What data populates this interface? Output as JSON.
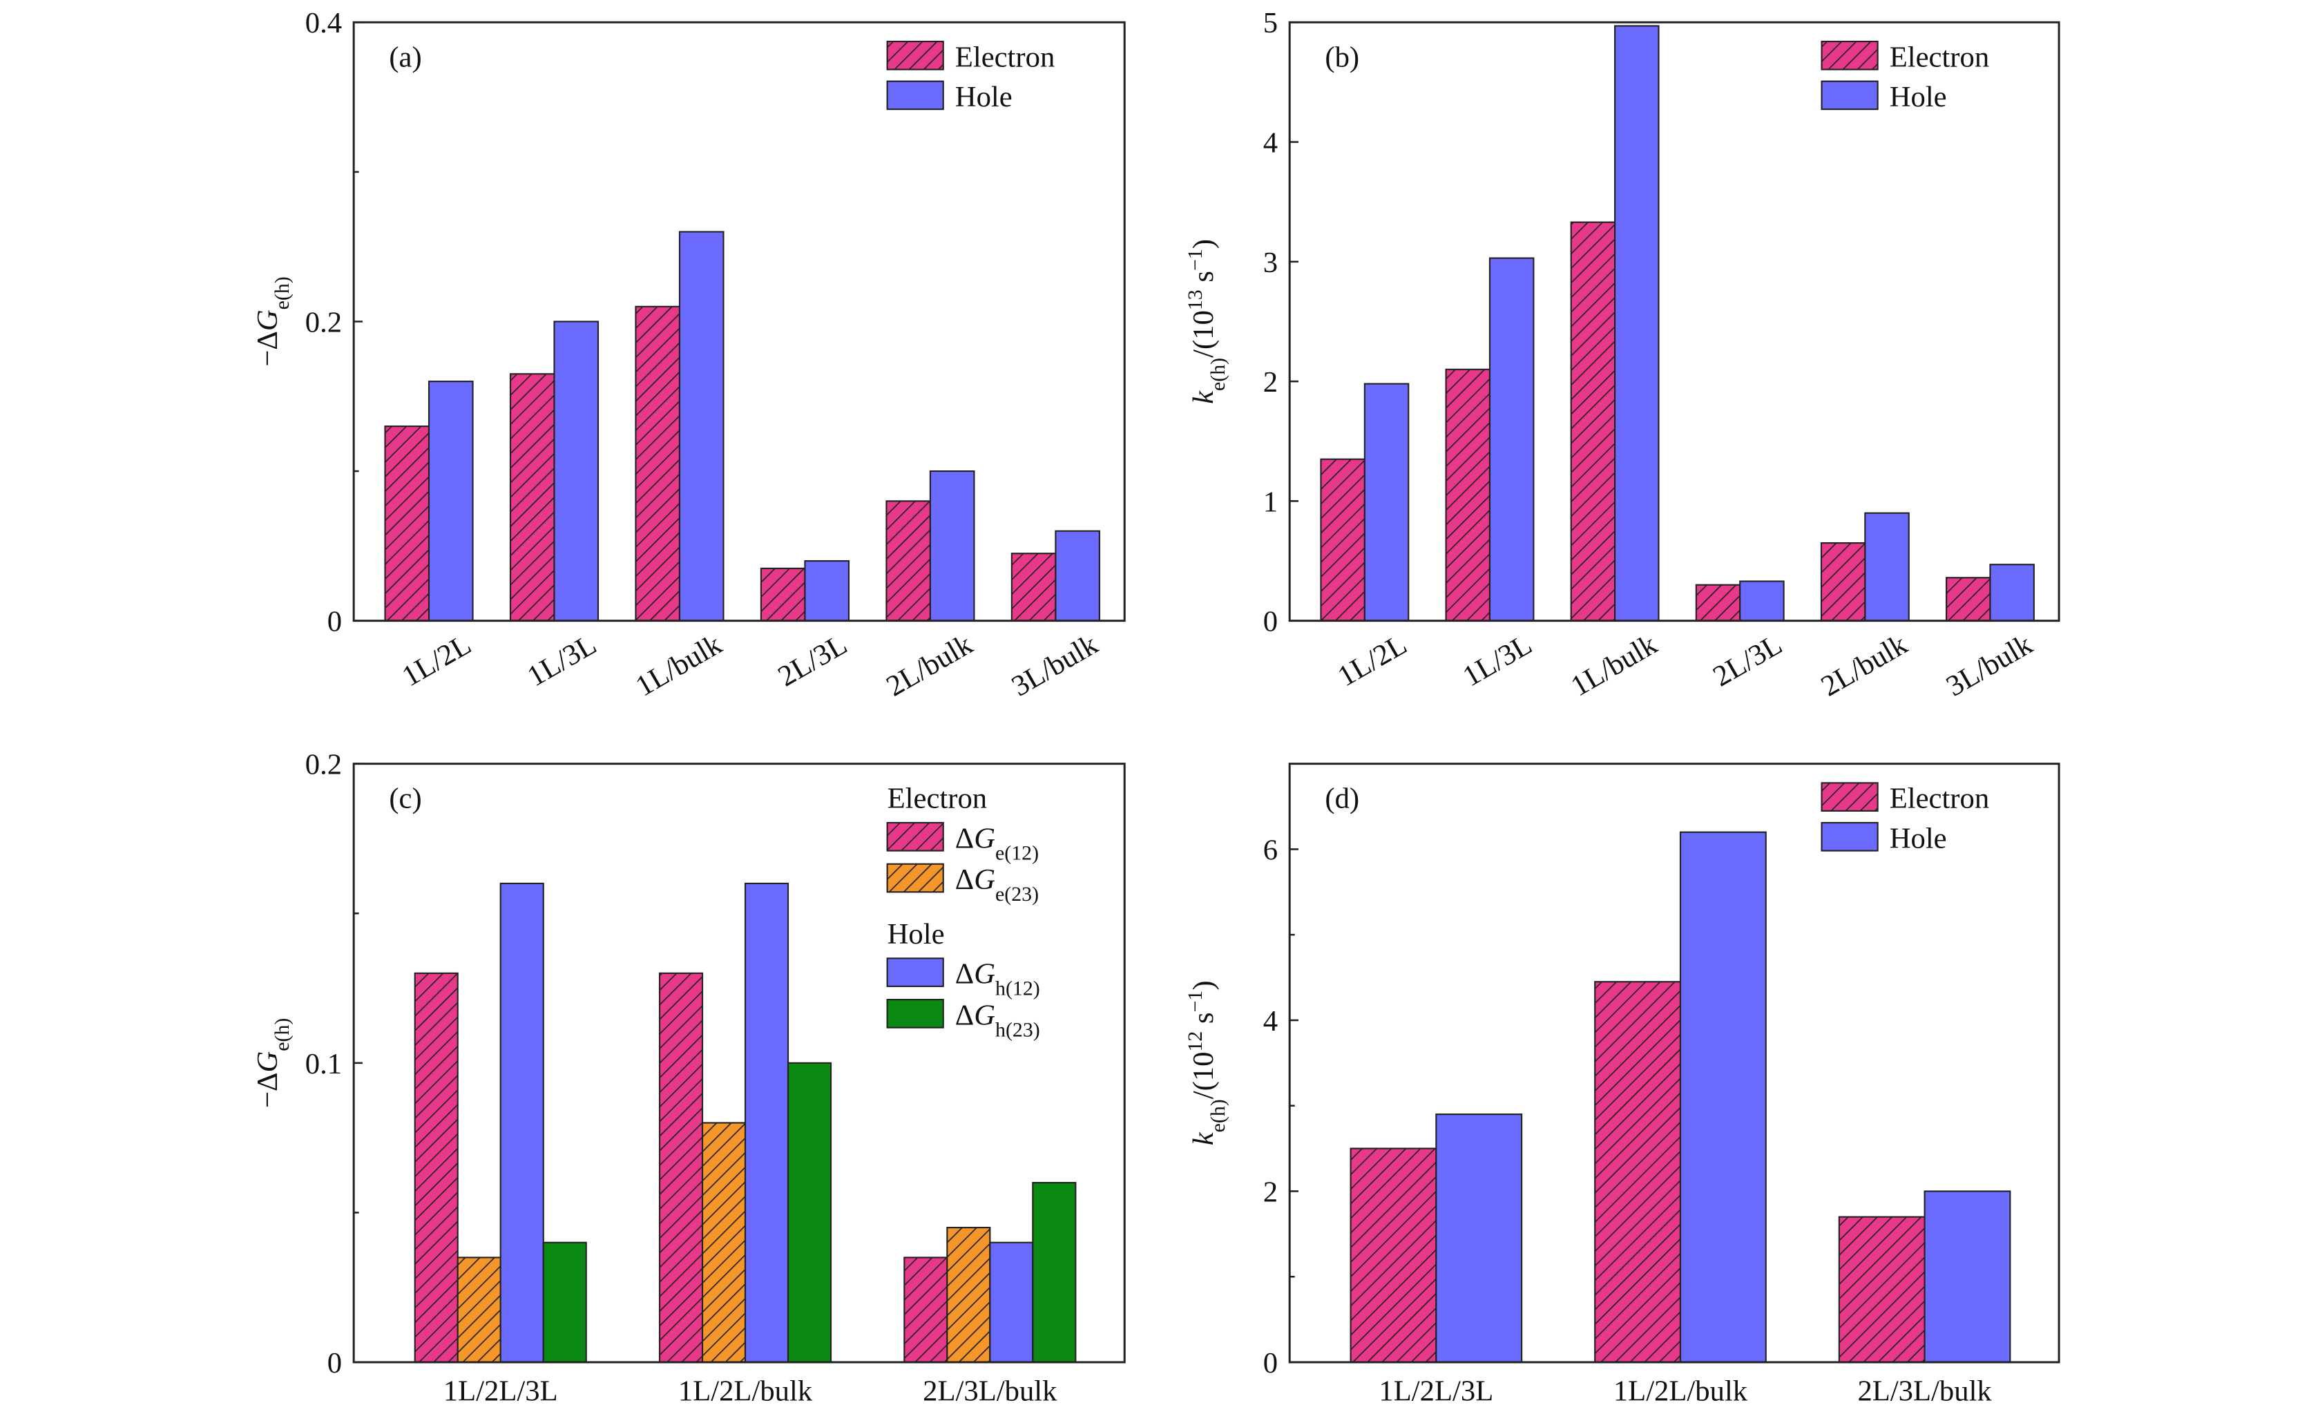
{
  "chart_data": [
    {
      "type": "bar",
      "panel_label": "(a)",
      "ylabel": [
        {
          "text": "−Δ"
        },
        {
          "text": "G",
          "italic": true
        },
        {
          "text": "e(h)",
          "sub": true
        }
      ],
      "categories": [
        "1L/2L",
        "1L/3L",
        "1L/bulk",
        "2L/3L",
        "2L/bulk",
        "3L/bulk"
      ],
      "rotated_xlabels": true,
      "ylim": [
        0,
        0.4
      ],
      "yticks": [
        0,
        0.2,
        0.4
      ],
      "yminor": [
        0.1,
        0.3
      ],
      "legend": "upper right",
      "series": [
        {
          "name": [
            {
              "text": "Electron"
            }
          ],
          "color": "#e8388a",
          "hatch": true,
          "values": [
            0.13,
            0.165,
            0.21,
            0.035,
            0.08,
            0.045
          ]
        },
        {
          "name": [
            {
              "text": "Hole"
            }
          ],
          "color": "#6b6bff",
          "hatch": false,
          "values": [
            0.16,
            0.2,
            0.26,
            0.04,
            0.1,
            0.06
          ]
        }
      ]
    },
    {
      "type": "bar",
      "panel_label": "(b)",
      "ylabel": [
        {
          "text": "k",
          "italic": true
        },
        {
          "text": "e(h)",
          "sub": true
        },
        {
          "text": "/(10"
        },
        {
          "text": "13",
          "sup": true
        },
        {
          "text": " s"
        },
        {
          "text": "−1",
          "sup": true
        },
        {
          "text": ")"
        }
      ],
      "categories": [
        "1L/2L",
        "1L/3L",
        "1L/bulk",
        "2L/3L",
        "2L/bulk",
        "3L/bulk"
      ],
      "rotated_xlabels": true,
      "ylim": [
        0,
        5
      ],
      "yticks": [
        0,
        1,
        2,
        3,
        4,
        5
      ],
      "yminor": [],
      "legend": "upper right",
      "series": [
        {
          "name": [
            {
              "text": "Electron"
            }
          ],
          "color": "#e8388a",
          "hatch": true,
          "values": [
            1.35,
            2.1,
            3.33,
            0.3,
            0.65,
            0.36
          ]
        },
        {
          "name": [
            {
              "text": "Hole"
            }
          ],
          "color": "#6b6bff",
          "hatch": false,
          "values": [
            1.98,
            3.03,
            4.97,
            0.33,
            0.9,
            0.47
          ]
        }
      ]
    },
    {
      "type": "bar",
      "panel_label": "(c)",
      "ylabel": [
        {
          "text": "−Δ"
        },
        {
          "text": "G",
          "italic": true
        },
        {
          "text": "e(h)",
          "sub": true
        }
      ],
      "categories": [
        "1L/2L/3L",
        "1L/2L/bulk",
        "2L/3L/bulk"
      ],
      "rotated_xlabels": false,
      "ylim": [
        0,
        0.2
      ],
      "yticks": [
        0,
        0.1,
        0.2
      ],
      "yminor": [
        0.05,
        0.15
      ],
      "legend": "upper right",
      "legend_groups": [
        {
          "title": "Electron",
          "series": [
            0,
            1
          ]
        },
        {
          "title": "Hole",
          "series": [
            2,
            3
          ]
        }
      ],
      "series": [
        {
          "name": [
            {
              "text": "Δ"
            },
            {
              "text": "G",
              "italic": true
            },
            {
              "text": "e(12)",
              "sub": true
            }
          ],
          "color": "#e8388a",
          "hatch": true,
          "values": [
            0.13,
            0.13,
            0.035
          ]
        },
        {
          "name": [
            {
              "text": "Δ"
            },
            {
              "text": "G",
              "italic": true
            },
            {
              "text": "e(23)",
              "sub": true
            }
          ],
          "color": "#f5962a",
          "hatch": true,
          "values": [
            0.035,
            0.08,
            0.045
          ]
        },
        {
          "name": [
            {
              "text": "Δ"
            },
            {
              "text": "G",
              "italic": true
            },
            {
              "text": "h(12)",
              "sub": true
            }
          ],
          "color": "#6b6bff",
          "hatch": false,
          "values": [
            0.16,
            0.16,
            0.04
          ]
        },
        {
          "name": [
            {
              "text": "Δ"
            },
            {
              "text": "G",
              "italic": true
            },
            {
              "text": "h(23)",
              "sub": true
            }
          ],
          "color": "#0a8a12",
          "hatch": false,
          "values": [
            0.04,
            0.1,
            0.06
          ]
        }
      ]
    },
    {
      "type": "bar",
      "panel_label": "(d)",
      "ylabel": [
        {
          "text": "k",
          "italic": true
        },
        {
          "text": "e(h)",
          "sub": true
        },
        {
          "text": "/(10"
        },
        {
          "text": "12",
          "sup": true
        },
        {
          "text": " s"
        },
        {
          "text": "−1",
          "sup": true
        },
        {
          "text": ")"
        }
      ],
      "categories": [
        "1L/2L/3L",
        "1L/2L/bulk",
        "2L/3L/bulk"
      ],
      "rotated_xlabels": false,
      "ylim": [
        0,
        7
      ],
      "yticks": [
        0,
        2,
        4,
        6
      ],
      "yminor": [
        1,
        3,
        5
      ],
      "legend": "upper right",
      "series": [
        {
          "name": [
            {
              "text": "Electron"
            }
          ],
          "color": "#e8388a",
          "hatch": true,
          "values": [
            2.5,
            4.45,
            1.7
          ]
        },
        {
          "name": [
            {
              "text": "Hole"
            }
          ],
          "color": "#6b6bff",
          "hatch": false,
          "values": [
            2.9,
            6.2,
            2.0
          ]
        }
      ]
    }
  ]
}
